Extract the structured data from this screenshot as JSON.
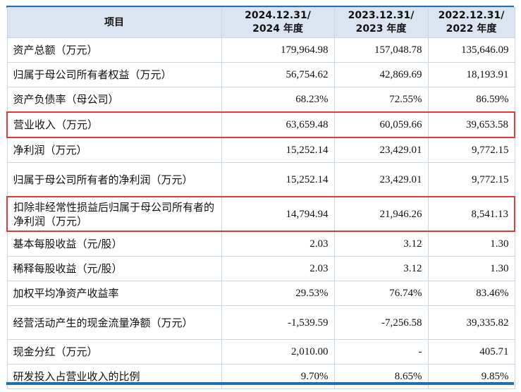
{
  "colors": {
    "header_bg": "#dbe5f1",
    "highlight_border": "#e03a3a",
    "rule": "#1f6fb2"
  },
  "header": {
    "item": "项目",
    "cols": [
      {
        "l1": "2024.12.31/",
        "l2": "2024 年度"
      },
      {
        "l1": "2023.12.31/",
        "l2": "2023 年度"
      },
      {
        "l1": "2022.12.31/",
        "l2": "2022 年度"
      }
    ]
  },
  "rows": [
    {
      "label": "资产总额（万元）",
      "v": [
        "179,964.98",
        "157,048.78",
        "135,646.09"
      ]
    },
    {
      "label": "归属于母公司所有者权益（万元）",
      "v": [
        "56,754.62",
        "42,869.69",
        "18,193.91"
      ]
    },
    {
      "label": "资产负债率（母公司）",
      "v": [
        "68.23%",
        "72.55%",
        "86.59%"
      ]
    },
    {
      "label": "营业收入（万元）",
      "v": [
        "63,659.48",
        "60,059.66",
        "39,653.58"
      ]
    },
    {
      "label": "净利润（万元）",
      "v": [
        "15,252.14",
        "23,429.01",
        "9,772.15"
      ]
    },
    {
      "label": "归属于母公司所有者的净利润（万元）",
      "v": [
        "15,252.14",
        "23,429.01",
        "9,772.15"
      ]
    },
    {
      "label": "扣除非经常性损益后归属于母公司所有者的净利润（万元）",
      "v": [
        "14,794.94",
        "21,946.26",
        "8,541.13"
      ]
    },
    {
      "label": "基本每股收益（元/股）",
      "v": [
        "2.03",
        "3.12",
        "1.30"
      ]
    },
    {
      "label": "稀释每股收益（元/股）",
      "v": [
        "2.03",
        "3.12",
        "1.30"
      ]
    },
    {
      "label": "加权平均净资产收益率",
      "v": [
        "29.53%",
        "76.74%",
        "83.46%"
      ]
    },
    {
      "label": "经营活动产生的现金流量净额（万元）",
      "v": [
        "-1,539.59",
        "-7,256.58",
        "39,335.82"
      ]
    },
    {
      "label": "现金分红（万元）",
      "v": [
        "2,010.00",
        "-",
        "405.71"
      ]
    },
    {
      "label": "研发投入占营业收入的比例",
      "v": [
        "9.70%",
        "8.65%",
        "9.85%"
      ]
    }
  ]
}
